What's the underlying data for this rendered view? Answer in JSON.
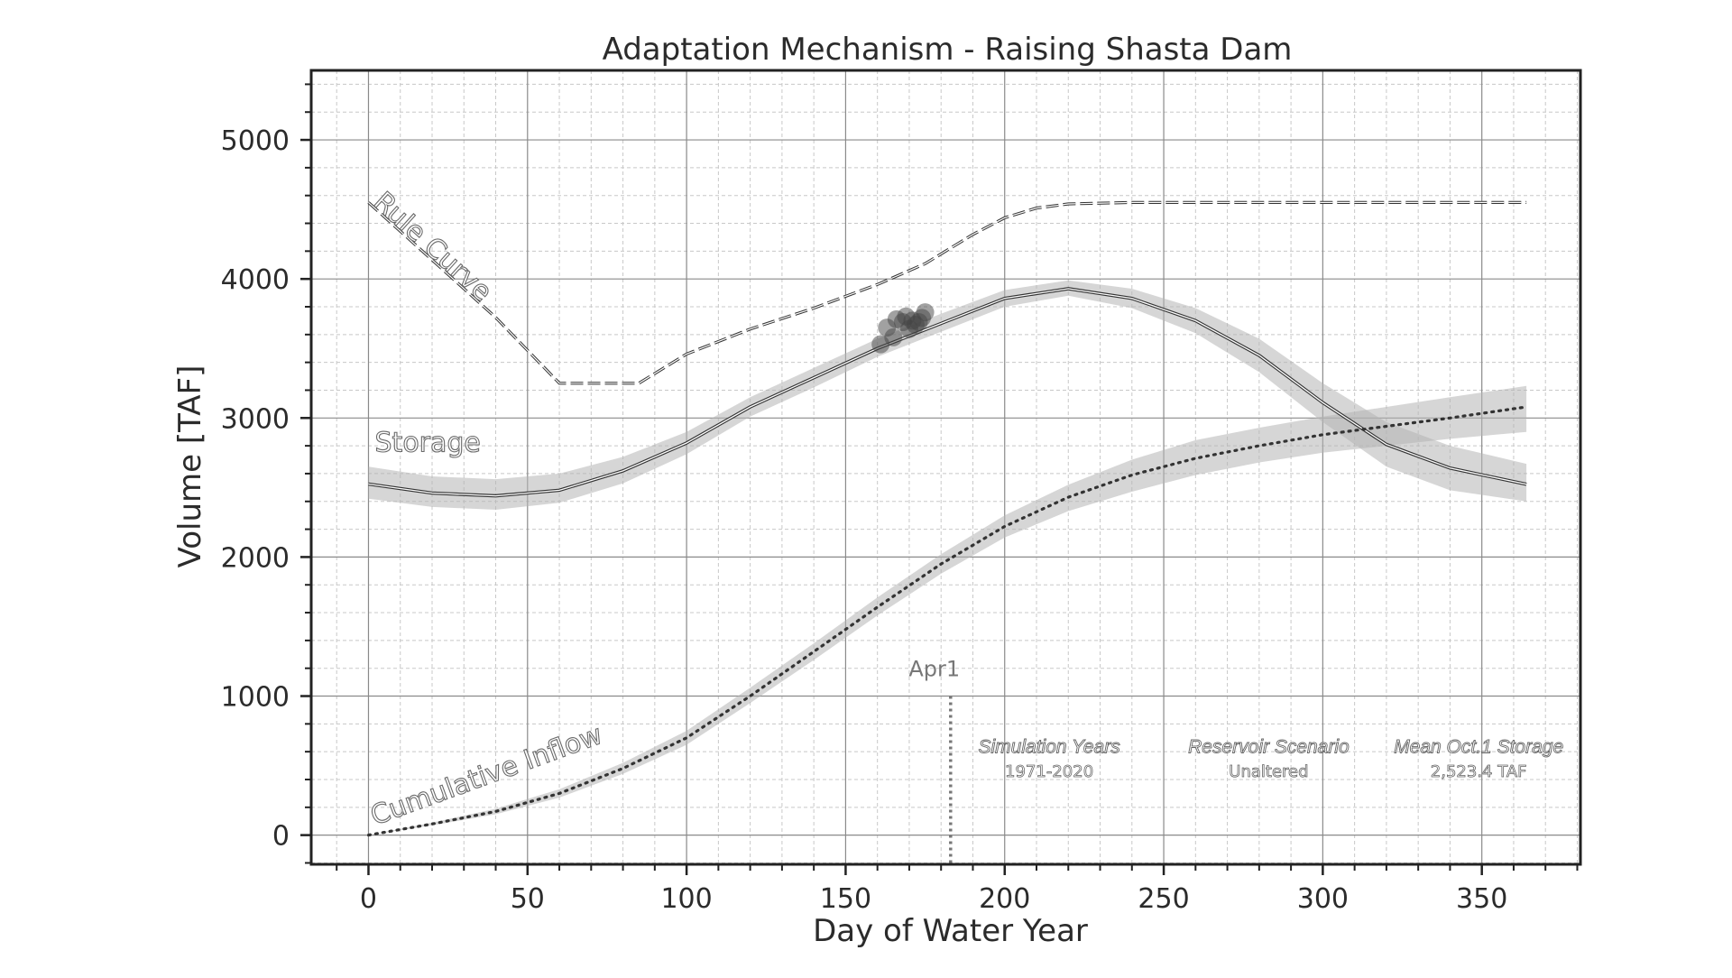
{
  "chart_data": {
    "type": "line",
    "title": "Adaptation Mechanism - Raising Shasta Dam",
    "xlabel": "Day of Water Year",
    "ylabel": "Volume [TAF]",
    "xlim": [
      -18,
      381
    ],
    "ylim": [
      -210,
      5500
    ],
    "x_ticks": [
      0,
      50,
      100,
      150,
      200,
      250,
      300,
      350
    ],
    "y_ticks": [
      0,
      1000,
      2000,
      3000,
      4000,
      5000
    ],
    "grid": true,
    "series": [
      {
        "name": "Rule Curve",
        "style": "dashed",
        "x": [
          0,
          20,
          40,
          60,
          85,
          100,
          120,
          140,
          160,
          175,
          190,
          200,
          210,
          220,
          240,
          270,
          300,
          330,
          364
        ],
        "y": [
          4550,
          4137,
          3723,
          3250,
          3250,
          3460,
          3640,
          3790,
          3960,
          4110,
          4320,
          4440,
          4510,
          4540,
          4550,
          4550,
          4550,
          4550,
          4550
        ]
      },
      {
        "name": "Storage",
        "style": "double-line",
        "x": [
          0,
          20,
          40,
          60,
          80,
          100,
          120,
          140,
          160,
          180,
          200,
          220,
          240,
          260,
          280,
          300,
          320,
          340,
          364
        ],
        "y": [
          2525,
          2460,
          2440,
          2480,
          2620,
          2820,
          3080,
          3290,
          3500,
          3680,
          3860,
          3930,
          3860,
          3700,
          3450,
          3110,
          2810,
          2640,
          2523
        ],
        "band": {
          "lower": [
            2420,
            2360,
            2340,
            2390,
            2530,
            2740,
            3010,
            3220,
            3440,
            3620,
            3800,
            3880,
            3790,
            3610,
            3330,
            2970,
            2650,
            2480,
            2400
          ],
          "upper": [
            2650,
            2580,
            2560,
            2600,
            2720,
            2900,
            3150,
            3360,
            3570,
            3750,
            3920,
            3990,
            3930,
            3790,
            3570,
            3250,
            2970,
            2800,
            2670
          ]
        }
      },
      {
        "name": "Cumulative Inflow",
        "style": "dotted",
        "x": [
          0,
          20,
          40,
          60,
          80,
          100,
          120,
          140,
          160,
          180,
          200,
          220,
          240,
          260,
          280,
          300,
          320,
          340,
          364
        ],
        "y": [
          0,
          80,
          170,
          300,
          480,
          700,
          1000,
          1320,
          1640,
          1950,
          2220,
          2430,
          2590,
          2710,
          2800,
          2880,
          2940,
          3000,
          3080
        ],
        "band": {
          "lower": [
            0,
            70,
            150,
            270,
            440,
            650,
            950,
            1260,
            1580,
            1880,
            2140,
            2330,
            2470,
            2590,
            2680,
            2750,
            2800,
            2850,
            2900
          ],
          "upper": [
            0,
            90,
            190,
            330,
            520,
            750,
            1060,
            1380,
            1710,
            2020,
            2300,
            2520,
            2700,
            2840,
            2930,
            3010,
            3080,
            3150,
            3230
          ]
        }
      }
    ],
    "april1_points": {
      "x": [
        161,
        163,
        165,
        166,
        168,
        169,
        170,
        171,
        172,
        173,
        174,
        175
      ],
      "y": [
        3530,
        3650,
        3580,
        3710,
        3690,
        3730,
        3640,
        3700,
        3670,
        3690,
        3720,
        3760
      ]
    },
    "vline": {
      "x": 183,
      "label": "Apr1"
    },
    "series_labels": {
      "rule_curve": "Rule Curve",
      "storage": "Storage",
      "inflow": "Cumulative Inflow"
    },
    "info_table": [
      {
        "header": "Simulation Years",
        "value": "1971-2020"
      },
      {
        "header": "Reservoir Scenario",
        "value": "Unaltered"
      },
      {
        "header": "Mean Oct.1 Storage",
        "value": "2,523.4 TAF"
      }
    ],
    "colors": {
      "axis": "#222222",
      "text": "#2b2b2b",
      "grid_major": "#8a8a8a",
      "grid_minor": "#c8c8c8",
      "band": "#b5b5b5",
      "marker": "#444444",
      "vline": "#777777"
    }
  }
}
